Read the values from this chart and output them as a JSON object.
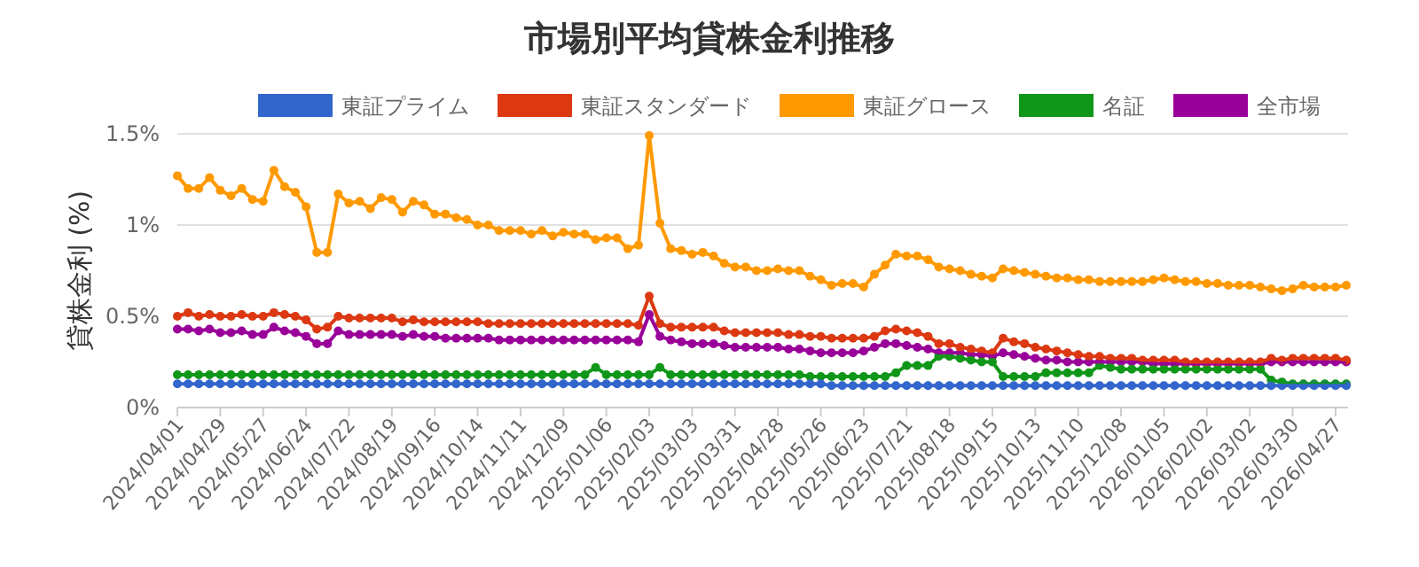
{
  "chart_data": {
    "type": "line",
    "title": "市場別平均貸株金利推移",
    "ylabel": "貸株金利 (%)",
    "categories": [
      "2024/04/01",
      null,
      null,
      null,
      "2024/04/29",
      null,
      null,
      null,
      "2024/05/27",
      null,
      null,
      null,
      "2024/06/24",
      null,
      null,
      null,
      "2024/07/22",
      null,
      null,
      null,
      "2024/08/19",
      null,
      null,
      null,
      "2024/09/16",
      null,
      null,
      null,
      "2024/10/14",
      null,
      null,
      null,
      "2024/11/11",
      null,
      null,
      null,
      "2024/12/09",
      null,
      null,
      null,
      "2025/01/06",
      null,
      null,
      null,
      "2025/02/03",
      null,
      null,
      null,
      "2025/03/03",
      null,
      null,
      null,
      "2025/03/31",
      null,
      null,
      null,
      "2025/04/28",
      null,
      null,
      null,
      "2025/05/26",
      null,
      null,
      null,
      "2025/06/23",
      null,
      null,
      null,
      "2025/07/21",
      null,
      null,
      null,
      "2025/08/18",
      null,
      null,
      null,
      "2025/09/15",
      null,
      null,
      null,
      "2025/10/13",
      null,
      null,
      null,
      "2025/11/10",
      null,
      null,
      null,
      "2025/12/08",
      null,
      null,
      null,
      "2026/01/05",
      null,
      null,
      null,
      "2026/02/02",
      null,
      null,
      null,
      "2026/03/02",
      null,
      null,
      null,
      "2026/03/30",
      null,
      null,
      null,
      "2026/04/27",
      null
    ],
    "series": [
      {
        "name": "東証プライム",
        "color": "#3366cc",
        "values": [
          0.13,
          0.13,
          0.13,
          0.13,
          0.13,
          0.13,
          0.13,
          0.13,
          0.13,
          0.13,
          0.13,
          0.13,
          0.13,
          0.13,
          0.13,
          0.13,
          0.13,
          0.13,
          0.13,
          0.13,
          0.13,
          0.13,
          0.13,
          0.13,
          0.13,
          0.13,
          0.13,
          0.13,
          0.13,
          0.13,
          0.13,
          0.13,
          0.13,
          0.13,
          0.13,
          0.13,
          0.13,
          0.13,
          0.13,
          0.13,
          0.13,
          0.13,
          0.13,
          0.13,
          0.13,
          0.13,
          0.13,
          0.13,
          0.13,
          0.13,
          0.13,
          0.13,
          0.13,
          0.13,
          0.13,
          0.13,
          0.13,
          0.13,
          0.13,
          0.13,
          0.13,
          0.12,
          0.12,
          0.12,
          0.12,
          0.12,
          0.12,
          0.12,
          0.12,
          0.12,
          0.12,
          0.12,
          0.12,
          0.12,
          0.12,
          0.12,
          0.12,
          0.12,
          0.12,
          0.12,
          0.12,
          0.12,
          0.12,
          0.12,
          0.12,
          0.12,
          0.12,
          0.12,
          0.12,
          0.12,
          0.12,
          0.12,
          0.12,
          0.12,
          0.12,
          0.12,
          0.12,
          0.12,
          0.12,
          0.12,
          0.12,
          0.12,
          0.12,
          0.12,
          0.12,
          0.12,
          0.12,
          0.12,
          0.12,
          0.12
        ]
      },
      {
        "name": "東証スタンダード",
        "color": "#dc3912",
        "values": [
          0.5,
          0.52,
          0.5,
          0.51,
          0.5,
          0.5,
          0.51,
          0.5,
          0.5,
          0.52,
          0.51,
          0.5,
          0.48,
          0.43,
          0.44,
          0.5,
          0.49,
          0.49,
          0.49,
          0.49,
          0.49,
          0.47,
          0.48,
          0.47,
          0.47,
          0.47,
          0.47,
          0.47,
          0.47,
          0.46,
          0.46,
          0.46,
          0.46,
          0.46,
          0.46,
          0.46,
          0.46,
          0.46,
          0.46,
          0.46,
          0.46,
          0.46,
          0.46,
          0.45,
          0.61,
          0.46,
          0.44,
          0.44,
          0.44,
          0.44,
          0.44,
          0.42,
          0.41,
          0.41,
          0.41,
          0.41,
          0.41,
          0.4,
          0.4,
          0.39,
          0.39,
          0.38,
          0.38,
          0.38,
          0.38,
          0.39,
          0.42,
          0.43,
          0.42,
          0.41,
          0.39,
          0.35,
          0.35,
          0.33,
          0.32,
          0.31,
          0.3,
          0.38,
          0.36,
          0.35,
          0.33,
          0.32,
          0.31,
          0.3,
          0.29,
          0.28,
          0.28,
          0.27,
          0.27,
          0.27,
          0.26,
          0.26,
          0.26,
          0.26,
          0.25,
          0.25,
          0.25,
          0.25,
          0.25,
          0.25,
          0.25,
          0.25,
          0.27,
          0.26,
          0.27,
          0.27,
          0.27,
          0.27,
          0.27,
          0.26
        ]
      },
      {
        "name": "東証グロース",
        "color": "#ff9900",
        "values": [
          1.27,
          1.2,
          1.2,
          1.26,
          1.19,
          1.16,
          1.2,
          1.14,
          1.13,
          1.3,
          1.21,
          1.18,
          1.1,
          0.85,
          0.85,
          1.17,
          1.12,
          1.13,
          1.09,
          1.15,
          1.14,
          1.07,
          1.13,
          1.11,
          1.06,
          1.06,
          1.04,
          1.03,
          1.0,
          1.0,
          0.97,
          0.97,
          0.97,
          0.95,
          0.97,
          0.94,
          0.96,
          0.95,
          0.95,
          0.92,
          0.93,
          0.93,
          0.87,
          0.89,
          1.49,
          1.01,
          0.87,
          0.86,
          0.84,
          0.85,
          0.83,
          0.79,
          0.77,
          0.77,
          0.75,
          0.75,
          0.76,
          0.75,
          0.75,
          0.72,
          0.7,
          0.67,
          0.68,
          0.68,
          0.66,
          0.73,
          0.78,
          0.84,
          0.83,
          0.83,
          0.81,
          0.77,
          0.76,
          0.75,
          0.73,
          0.72,
          0.71,
          0.76,
          0.75,
          0.74,
          0.73,
          0.72,
          0.71,
          0.71,
          0.7,
          0.7,
          0.69,
          0.69,
          0.69,
          0.69,
          0.69,
          0.7,
          0.71,
          0.7,
          0.69,
          0.69,
          0.68,
          0.68,
          0.67,
          0.67,
          0.67,
          0.66,
          0.65,
          0.64,
          0.65,
          0.67,
          0.66,
          0.66,
          0.66,
          0.67
        ]
      },
      {
        "name": "名証",
        "color": "#109618",
        "values": [
          0.18,
          0.18,
          0.18,
          0.18,
          0.18,
          0.18,
          0.18,
          0.18,
          0.18,
          0.18,
          0.18,
          0.18,
          0.18,
          0.18,
          0.18,
          0.18,
          0.18,
          0.18,
          0.18,
          0.18,
          0.18,
          0.18,
          0.18,
          0.18,
          0.18,
          0.18,
          0.18,
          0.18,
          0.18,
          0.18,
          0.18,
          0.18,
          0.18,
          0.18,
          0.18,
          0.18,
          0.18,
          0.18,
          0.18,
          0.22,
          0.18,
          0.18,
          0.18,
          0.18,
          0.18,
          0.22,
          0.18,
          0.18,
          0.18,
          0.18,
          0.18,
          0.18,
          0.18,
          0.18,
          0.18,
          0.18,
          0.18,
          0.18,
          0.18,
          0.17,
          0.17,
          0.17,
          0.17,
          0.17,
          0.17,
          0.17,
          0.17,
          0.19,
          0.23,
          0.23,
          0.23,
          0.28,
          0.28,
          0.27,
          0.26,
          0.25,
          0.25,
          0.17,
          0.17,
          0.17,
          0.17,
          0.19,
          0.19,
          0.19,
          0.19,
          0.19,
          0.23,
          0.22,
          0.21,
          0.21,
          0.21,
          0.21,
          0.21,
          0.21,
          0.21,
          0.21,
          0.21,
          0.21,
          0.21,
          0.21,
          0.21,
          0.21,
          0.15,
          0.14,
          0.13,
          0.13,
          0.13,
          0.13,
          0.13,
          0.13
        ]
      },
      {
        "name": "全市場",
        "color": "#990099",
        "values": [
          0.43,
          0.43,
          0.42,
          0.43,
          0.41,
          0.41,
          0.42,
          0.4,
          0.4,
          0.44,
          0.42,
          0.41,
          0.39,
          0.35,
          0.35,
          0.42,
          0.4,
          0.4,
          0.4,
          0.4,
          0.4,
          0.39,
          0.4,
          0.39,
          0.39,
          0.38,
          0.38,
          0.38,
          0.38,
          0.38,
          0.37,
          0.37,
          0.37,
          0.37,
          0.37,
          0.37,
          0.37,
          0.37,
          0.37,
          0.37,
          0.37,
          0.37,
          0.37,
          0.36,
          0.51,
          0.39,
          0.37,
          0.36,
          0.35,
          0.35,
          0.35,
          0.34,
          0.33,
          0.33,
          0.33,
          0.33,
          0.33,
          0.32,
          0.32,
          0.31,
          0.3,
          0.3,
          0.3,
          0.3,
          0.31,
          0.33,
          0.35,
          0.35,
          0.34,
          0.33,
          0.32,
          0.3,
          0.3,
          0.3,
          0.29,
          0.29,
          0.28,
          0.3,
          0.29,
          0.28,
          0.27,
          0.26,
          0.26,
          0.25,
          0.25,
          0.25,
          0.25,
          0.25,
          0.25,
          0.25,
          0.25,
          0.24,
          0.24,
          0.24,
          0.24,
          0.24,
          0.24,
          0.24,
          0.24,
          0.24,
          0.24,
          0.24,
          0.25,
          0.25,
          0.25,
          0.25,
          0.25,
          0.25,
          0.25,
          0.25
        ]
      }
    ],
    "ylim": [
      0,
      1.5
    ],
    "yticks": [
      {
        "value": 0,
        "label": "0%"
      },
      {
        "value": 0.5,
        "label": "0.5%"
      },
      {
        "value": 1,
        "label": "1%"
      },
      {
        "value": 1.5,
        "label": "1.5%"
      }
    ],
    "grid": "y",
    "legend": "top",
    "marker": "circle"
  }
}
